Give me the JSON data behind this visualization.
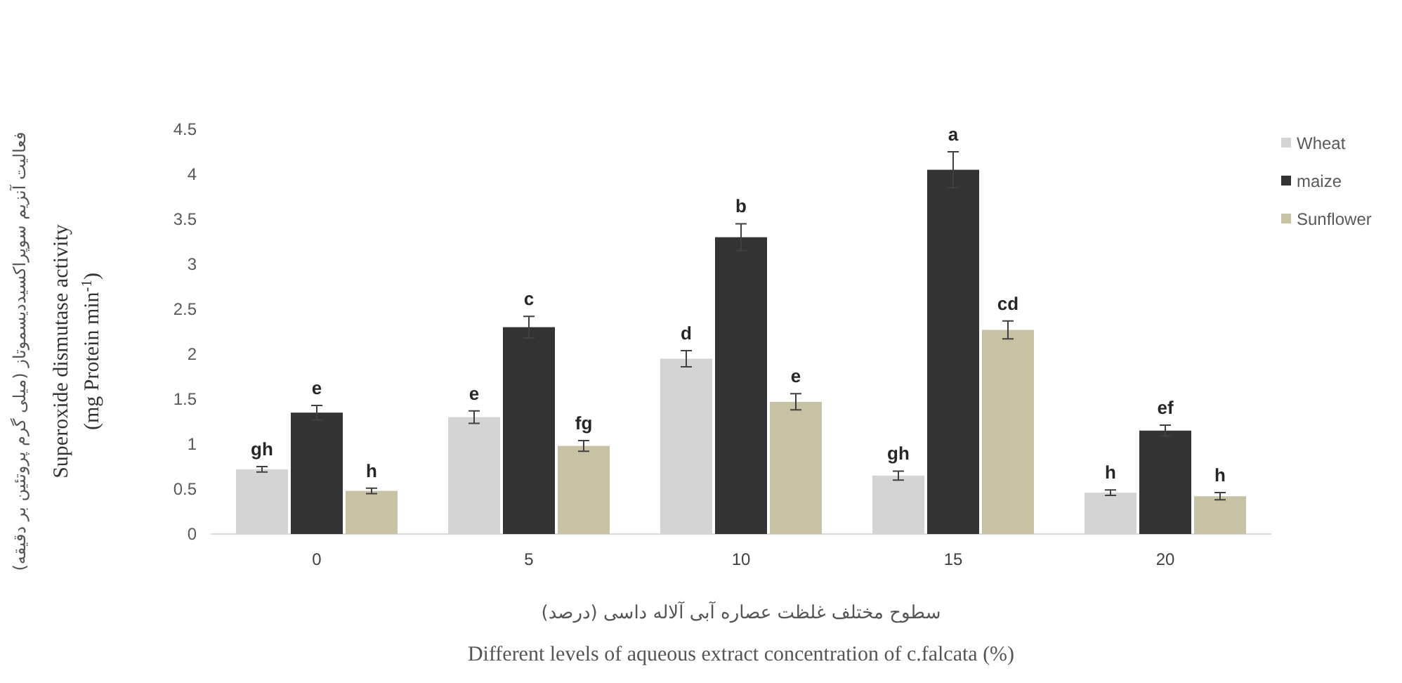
{
  "chart_data": {
    "type": "bar",
    "xlabel": "سطوح مختلف غلظت عصاره آبی آلاله داسی (درصد)\nDifferent levels of aqueous extract concentration of c.falcata (%)",
    "ylabel": "فعالیت آنزیم سوپراکسیددیسموتاز (میلی گرم پروتئین بر دقیقه)\nSuperoxide dismutase activity\n(mg Protein min$^{-1}$)",
    "categories": [
      "0",
      "5",
      "10",
      "15",
      "20"
    ],
    "series": [
      {
        "name": "Wheat",
        "color": "#d4d4d4",
        "values": [
          0.72,
          1.3,
          1.95,
          0.65,
          0.46
        ],
        "errors": [
          0.03,
          0.07,
          0.09,
          0.05,
          0.03
        ]
      },
      {
        "name": "maize",
        "color": "#333333",
        "values": [
          1.35,
          2.3,
          3.3,
          4.05,
          1.15
        ],
        "errors": [
          0.08,
          0.12,
          0.15,
          0.2,
          0.06
        ]
      },
      {
        "name": "Sunflower",
        "color": "#c8c2a4",
        "values": [
          0.48,
          0.98,
          1.47,
          2.27,
          0.42
        ],
        "errors": [
          0.03,
          0.06,
          0.09,
          0.1,
          0.04
        ]
      }
    ],
    "ylim": [
      0,
      4.5
    ],
    "yticks": [
      0,
      0.5,
      1,
      1.5,
      2,
      2.5,
      3,
      3.5,
      4,
      4.5
    ],
    "legend": "right",
    "annotations": [
      "gh",
      "e",
      "h",
      "e",
      "c",
      "fg",
      "d",
      "b",
      "e",
      "gh",
      "a",
      "cd",
      "h",
      "ef",
      "h"
    ]
  }
}
